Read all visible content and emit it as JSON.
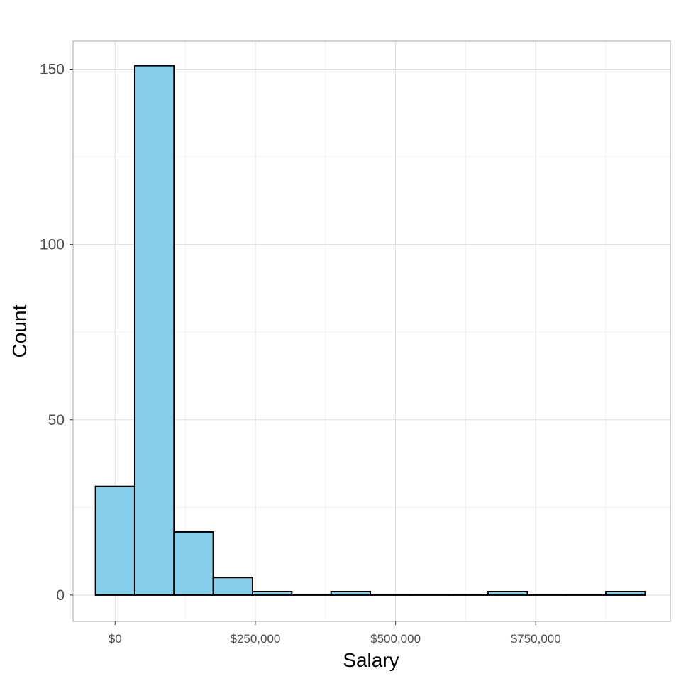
{
  "chart_data": {
    "type": "bar",
    "title": "",
    "xlabel": "Salary",
    "ylabel": "Count",
    "xlim": [
      -75000,
      990000
    ],
    "ylim": [
      -7.5,
      158
    ],
    "x_ticks": [
      {
        "value": 0,
        "label": "$0"
      },
      {
        "value": 250000,
        "label": "$250,000"
      },
      {
        "value": 500000,
        "label": "$500,000"
      },
      {
        "value": 750000,
        "label": "$750,000"
      }
    ],
    "y_ticks": [
      {
        "value": 0,
        "label": "0"
      },
      {
        "value": 50,
        "label": "50"
      },
      {
        "value": 100,
        "label": "100"
      },
      {
        "value": 150,
        "label": "150"
      }
    ],
    "bins": [
      {
        "x0": -35000,
        "x1": 35000,
        "count": 31
      },
      {
        "x0": 35000,
        "x1": 105000,
        "count": 151
      },
      {
        "x0": 105000,
        "x1": 175000,
        "count": 18
      },
      {
        "x0": 175000,
        "x1": 245000,
        "count": 5
      },
      {
        "x0": 245000,
        "x1": 315000,
        "count": 1
      },
      {
        "x0": 315000,
        "x1": 385000,
        "count": 0
      },
      {
        "x0": 385000,
        "x1": 455000,
        "count": 1
      },
      {
        "x0": 455000,
        "x1": 525000,
        "count": 0
      },
      {
        "x0": 525000,
        "x1": 595000,
        "count": 0
      },
      {
        "x0": 595000,
        "x1": 665000,
        "count": 0
      },
      {
        "x0": 665000,
        "x1": 735000,
        "count": 1
      },
      {
        "x0": 735000,
        "x1": 805000,
        "count": 0
      },
      {
        "x0": 805000,
        "x1": 875000,
        "count": 0
      },
      {
        "x0": 875000,
        "x1": 945000,
        "count": 1
      }
    ],
    "grid": true,
    "colors": {
      "bar_fill": "#87ceeb",
      "bar_stroke": "#000000",
      "grid_major": "#dedede",
      "grid_minor": "#efefef",
      "panel_border": "#b3b3b3"
    }
  }
}
